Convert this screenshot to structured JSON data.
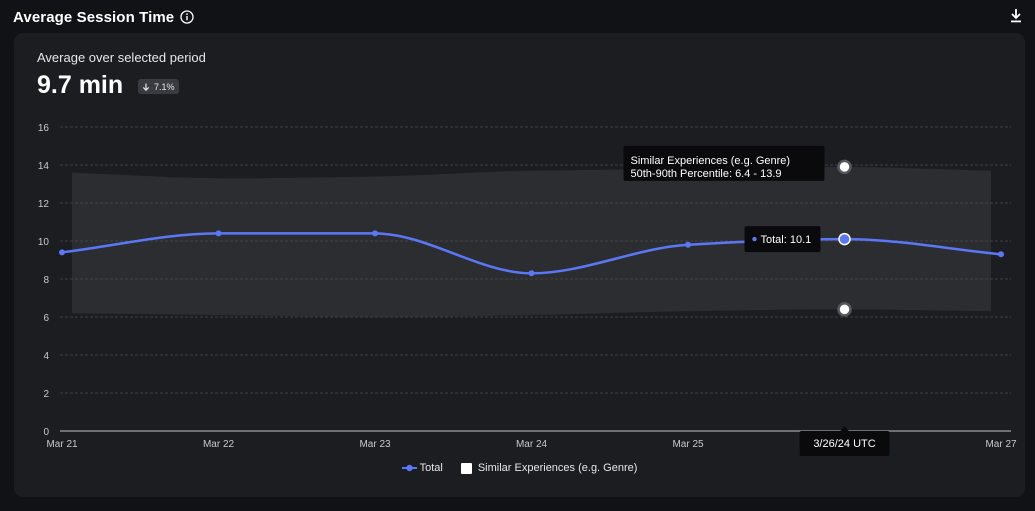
{
  "header": {
    "title": "Average Session Time"
  },
  "summary": {
    "subtitle": "Average over selected period",
    "value": "9.7 min",
    "delta": "7.1%",
    "delta_direction": "down"
  },
  "tooltip": {
    "band_line1": "Similar Experiences (e.g. Genre)",
    "band_line2": "50th-90th Percentile: 6.4 - 13.9",
    "total_label": "Total: 10.1",
    "date_label": "3/26/24 UTC"
  },
  "colors": {
    "line": "#5a78f5",
    "band": "#2c2d31",
    "card": "#1c1d21",
    "background": "#111216"
  },
  "chart_data": {
    "type": "line",
    "x": [
      "Mar 21",
      "Mar 22",
      "Mar 23",
      "Mar 24",
      "Mar 25",
      "Mar 26",
      "Mar 27"
    ],
    "x_tick_labels": [
      "Mar 21",
      "Mar 22",
      "Mar 23",
      "Mar 24",
      "Mar 25",
      "",
      "Mar 27"
    ],
    "ylim": [
      0,
      16
    ],
    "yticks": [
      "0",
      "2",
      "4",
      "6",
      "8",
      "10",
      "12",
      "14",
      "16"
    ],
    "grid": true,
    "legend_position": "bottom",
    "series": [
      {
        "name": "Total",
        "values": [
          9.4,
          10.4,
          10.4,
          8.3,
          9.8,
          10.1,
          9.3
        ]
      }
    ],
    "band": {
      "name": "Similar Experiences (e.g. Genre)",
      "lower": [
        6.2,
        6.1,
        6.0,
        6.1,
        6.3,
        6.4,
        6.3
      ],
      "upper": [
        13.6,
        13.3,
        13.4,
        13.7,
        13.8,
        13.9,
        13.7
      ]
    },
    "highlight_index": 5
  }
}
